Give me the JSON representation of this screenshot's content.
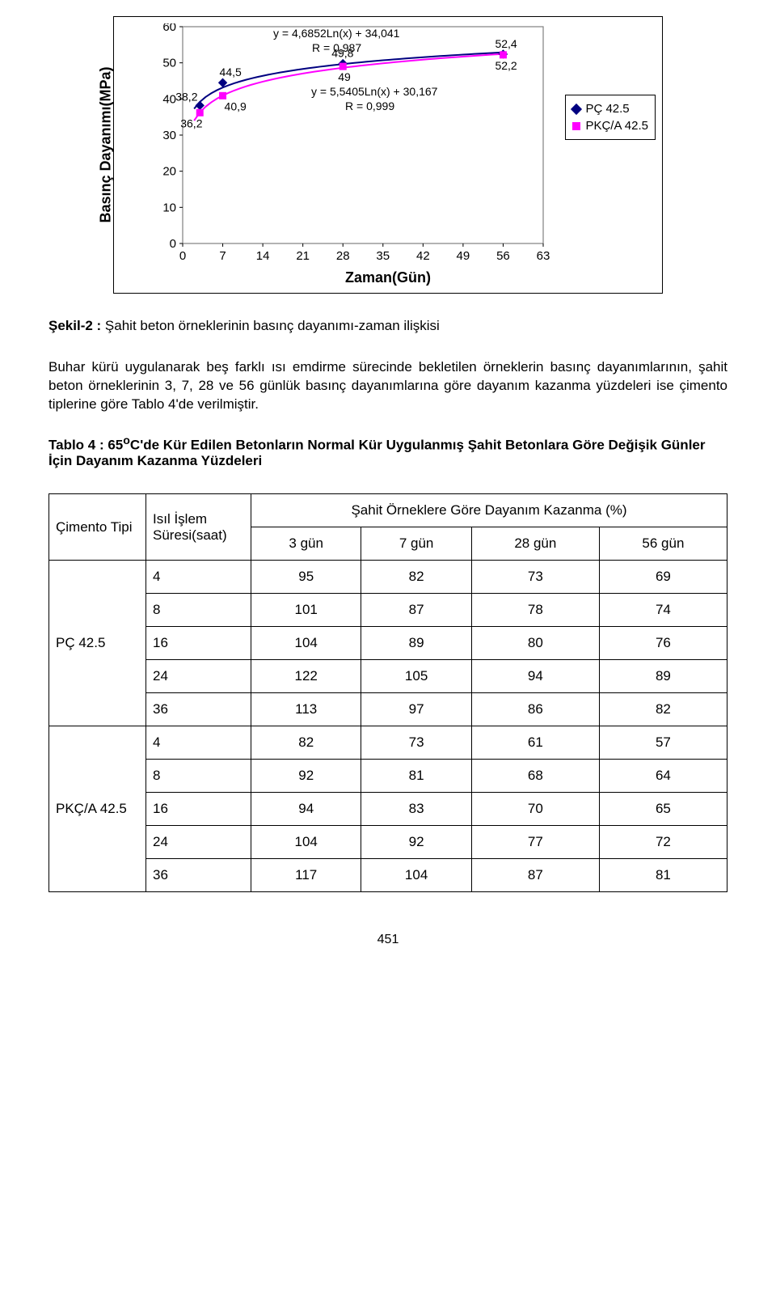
{
  "chart": {
    "y_axis_label": "Basınç Dayanımı(MPa)",
    "x_axis_label": "Zaman(Gün)",
    "background_color": "#ffffff",
    "plot_area_border": "#808080",
    "gridline_color": "#000000",
    "x_ticks": [
      0,
      7,
      14,
      21,
      28,
      35,
      42,
      49,
      56,
      63
    ],
    "y_ticks": [
      0,
      10,
      20,
      30,
      40,
      50,
      60
    ],
    "xlim": [
      0,
      63
    ],
    "ylim": [
      0,
      60
    ],
    "series": [
      {
        "name": "PÇ 42.5",
        "color": "#000080",
        "marker": "diamond",
        "x": [
          3,
          7,
          28,
          56
        ],
        "y": [
          38.2,
          44.5,
          49.8,
          52.4
        ],
        "labels": [
          "38,2",
          "44,5",
          "49,8",
          "52,4"
        ],
        "fit_text": "y = 4,6852Ln(x) + 34,041",
        "r_text": "R = 0,987"
      },
      {
        "name": "PKÇ/A 42.5",
        "color": "#ff00ff",
        "marker": "square",
        "x": [
          3,
          7,
          28,
          56
        ],
        "y": [
          36.2,
          40.9,
          49.0,
          52.2
        ],
        "labels": [
          "36,2",
          "40,9",
          "49",
          "52,2"
        ],
        "fit_text": "y = 5,5405Ln(x) + 30,167",
        "r_text": "R = 0,999"
      }
    ]
  },
  "figure_caption": {
    "prefix": "Şekil-2 :",
    "text": " Şahit beton örneklerinin basınç dayanımı-zaman ilişkisi"
  },
  "paragraph": "Buhar kürü uygulanarak beş farklı ısı emdirme sürecinde bekletilen örneklerin basınç dayanımlarının, şahit beton örneklerinin 3, 7, 28 ve 56 günlük basınç dayanımlarına göre dayanım kazanma yüzdeleri ise çimento tiplerine göre Tablo 4'de verilmiştir.",
  "table_caption": {
    "prefix": "Tablo 4 : 65",
    "superscript": "o",
    "middle": "C'de Kür Edilen Betonların Normal Kür Uygulanmış Şahit Betonlara Göre Değişik Günler İçin Dayanım Kazanma Yüzdeleri"
  },
  "table": {
    "col1_header": "Çimento Tipi",
    "col2_header": "Isıl İşlem Süresi(saat)",
    "span_header": "Şahit Örneklere Göre Dayanım Kazanma (%)",
    "sub_headers": [
      "3 gün",
      "7 gün",
      "28 gün",
      "56 gün"
    ],
    "groups": [
      {
        "label": "PÇ 42.5",
        "rows": [
          [
            "4",
            "95",
            "82",
            "73",
            "69"
          ],
          [
            "8",
            "101",
            "87",
            "78",
            "74"
          ],
          [
            "16",
            "104",
            "89",
            "80",
            "76"
          ],
          [
            "24",
            "122",
            "105",
            "94",
            "89"
          ],
          [
            "36",
            "113",
            "97",
            "86",
            "82"
          ]
        ]
      },
      {
        "label": "PKÇ/A 42.5",
        "rows": [
          [
            "4",
            "82",
            "73",
            "61",
            "57"
          ],
          [
            "8",
            "92",
            "81",
            "68",
            "64"
          ],
          [
            "16",
            "94",
            "83",
            "70",
            "65"
          ],
          [
            "24",
            "104",
            "92",
            "77",
            "72"
          ],
          [
            "36",
            "117",
            "104",
            "87",
            "81"
          ]
        ]
      }
    ]
  },
  "page_number": "451"
}
